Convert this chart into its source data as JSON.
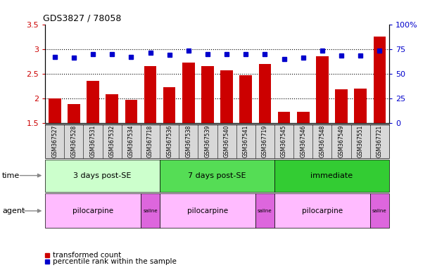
{
  "title": "GDS3827 / 78058",
  "samples": [
    "GSM367527",
    "GSM367528",
    "GSM367531",
    "GSM367532",
    "GSM367534",
    "GSM367718",
    "GSM367536",
    "GSM367538",
    "GSM367539",
    "GSM367540",
    "GSM367541",
    "GSM367719",
    "GSM367545",
    "GSM367546",
    "GSM367548",
    "GSM367549",
    "GSM367551",
    "GSM367721"
  ],
  "transformed_count": [
    2.0,
    1.88,
    2.35,
    2.08,
    1.97,
    2.65,
    2.22,
    2.72,
    2.65,
    2.57,
    2.46,
    2.7,
    1.72,
    1.73,
    2.85,
    2.18,
    2.19,
    3.25
  ],
  "percentile_rank": [
    67,
    66,
    70,
    70,
    67,
    71,
    69,
    73,
    70,
    70,
    70,
    70,
    65,
    66,
    73,
    68,
    68,
    73
  ],
  "ylim_left": [
    1.5,
    3.5
  ],
  "ylim_right": [
    0,
    100
  ],
  "yticks_left": [
    1.5,
    2.0,
    2.5,
    3.0,
    3.5
  ],
  "ytick_labels_left": [
    "1.5",
    "2",
    "2.5",
    "3",
    "3.5"
  ],
  "yticks_right": [
    0,
    25,
    50,
    75,
    100
  ],
  "ytick_labels_right": [
    "0",
    "25",
    "50",
    "75",
    "100%"
  ],
  "bar_color": "#cc0000",
  "dot_color": "#0000cc",
  "bar_bottom": 1.5,
  "time_groups": [
    {
      "label": "3 days post-SE",
      "start": 0,
      "end": 5,
      "color": "#ccffcc"
    },
    {
      "label": "7 days post-SE",
      "start": 6,
      "end": 11,
      "color": "#55dd55"
    },
    {
      "label": "immediate",
      "start": 12,
      "end": 17,
      "color": "#33cc33"
    }
  ],
  "agent_groups": [
    {
      "label": "pilocarpine",
      "start": 0,
      "end": 4,
      "color": "#ffbbff"
    },
    {
      "label": "saline",
      "start": 5,
      "end": 5,
      "color": "#dd66dd"
    },
    {
      "label": "pilocarpine",
      "start": 6,
      "end": 10,
      "color": "#ffbbff"
    },
    {
      "label": "saline",
      "start": 11,
      "end": 11,
      "color": "#dd66dd"
    },
    {
      "label": "pilocarpine",
      "start": 12,
      "end": 16,
      "color": "#ffbbff"
    },
    {
      "label": "saline",
      "start": 17,
      "end": 17,
      "color": "#dd66dd"
    }
  ],
  "tick_label_color_left": "#cc0000",
  "tick_label_color_right": "#0000cc",
  "time_row_label": "time",
  "agent_row_label": "agent",
  "legend_items": [
    {
      "label": "transformed count",
      "color": "#cc0000"
    },
    {
      "label": "percentile rank within the sample",
      "color": "#0000cc"
    }
  ]
}
